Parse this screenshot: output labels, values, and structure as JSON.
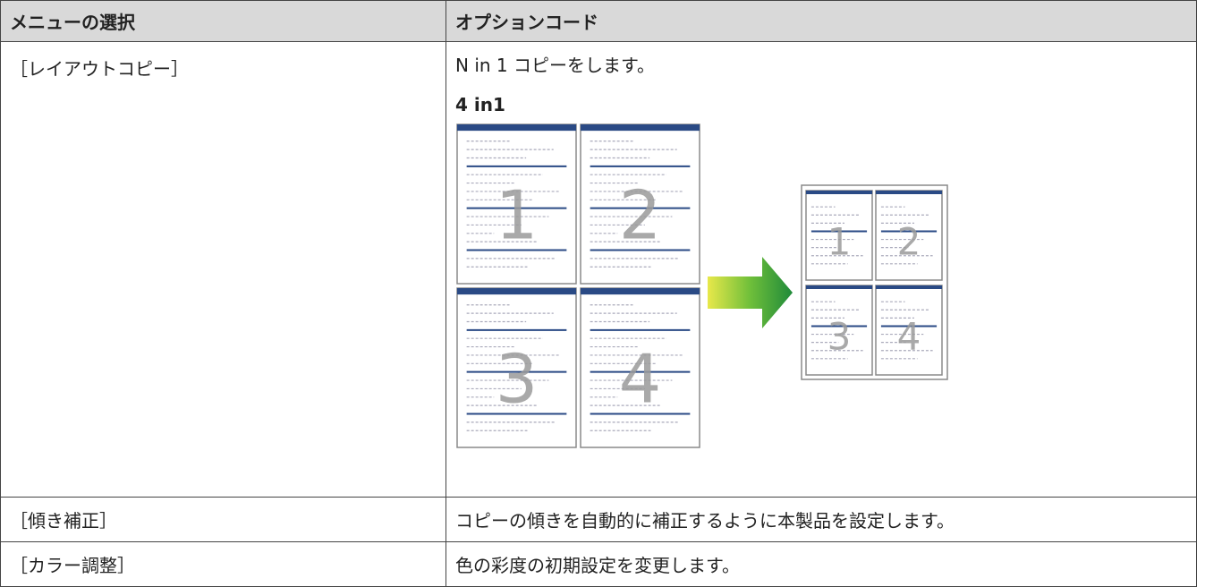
{
  "table": {
    "header": [
      "メニューの選択",
      "オプションコード"
    ],
    "rows": [
      {
        "menu": "［レイアウトコピー］",
        "description": "N in 1 コピーをします。",
        "subheading": "4 in1",
        "illustration": {
          "pages": [
            "1",
            "2",
            "3",
            "4"
          ]
        }
      },
      {
        "menu": "［傾き補正］",
        "description": "コピーの傾きを自動的に補正するように本製品を設定します。"
      },
      {
        "menu": "［カラー調整］",
        "description": "色の彩度の初期設定を変更します。"
      }
    ]
  }
}
